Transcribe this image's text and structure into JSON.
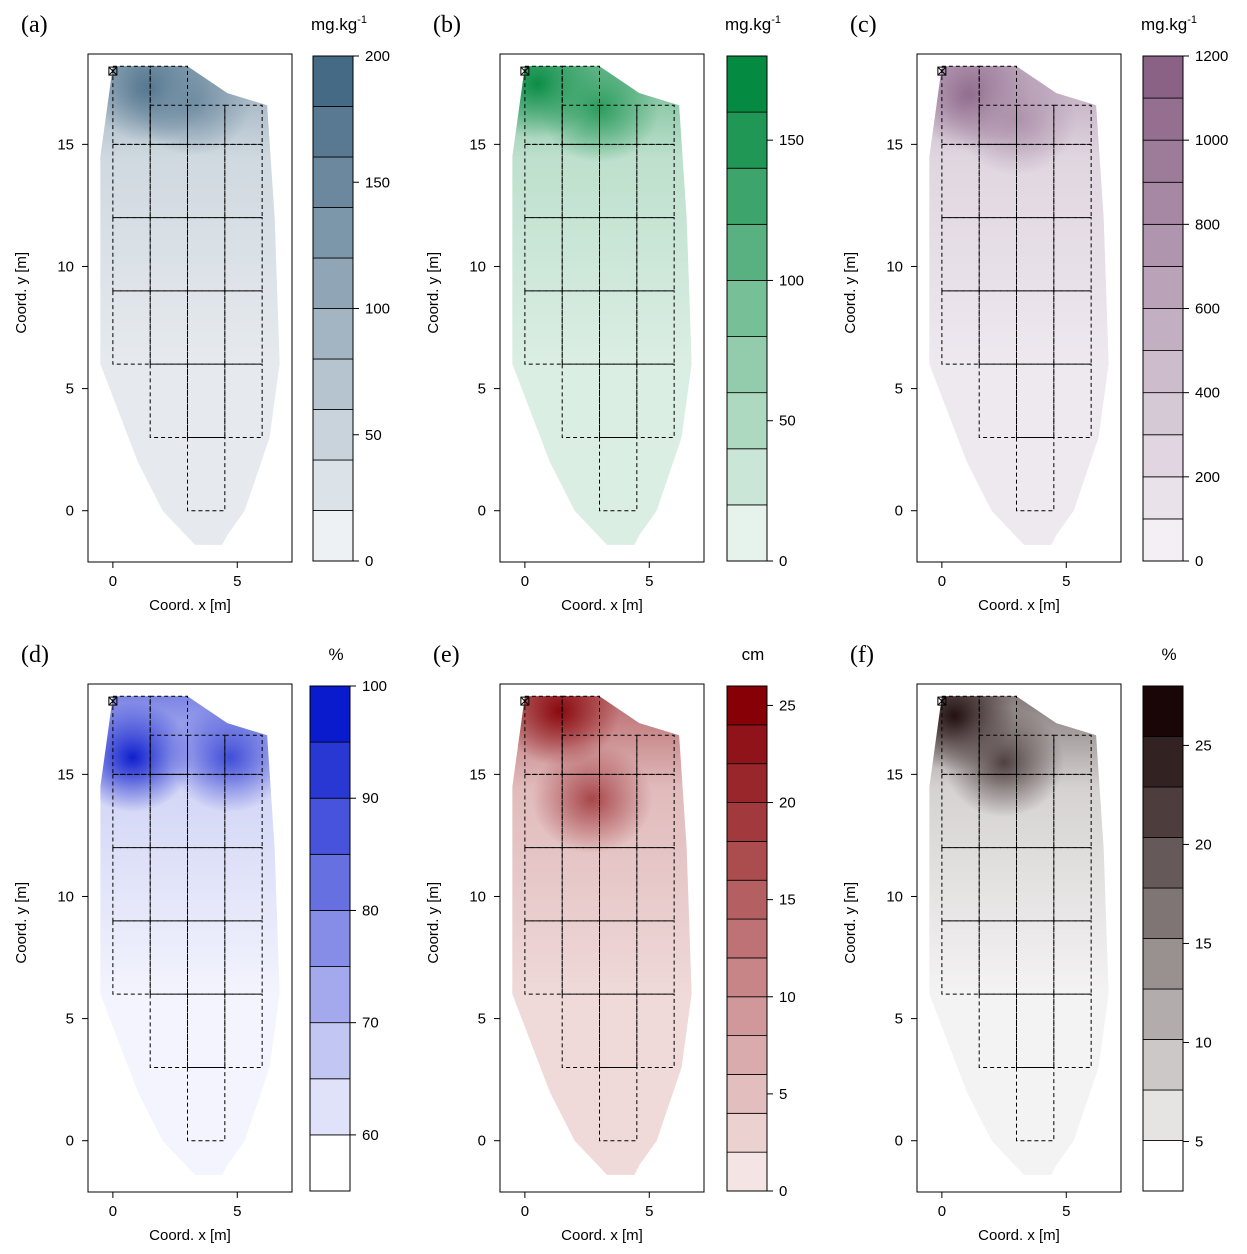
{
  "figure": {
    "grid": {
      "dims": "3 x 2 (panel)",
      "panels": [
        "(a)",
        "(b)",
        "(c)",
        "(d)",
        "(e)",
        "(f)"
      ]
    }
  },
  "chart_data": [
    {
      "type": "heatmap",
      "panel_label": "(a)",
      "unit_label": "mg.kg",
      "unit_superscript": "-1",
      "xlabel": "Coord. x [m]",
      "ylabel": "Coord. y [m]",
      "xlim": [
        -1,
        7.2
      ],
      "ylim": [
        -2.1,
        18.7
      ],
      "x_ticks": [
        "0",
        "5"
      ],
      "y_ticks": [
        "0",
        "5",
        "10",
        "15"
      ],
      "colorbar": {
        "min": 0,
        "max": 200,
        "levels": 10,
        "ticks": [
          "0",
          "50",
          "100",
          "150",
          "200"
        ],
        "tick_values": [
          0,
          50,
          100,
          150,
          200
        ],
        "color_low": "#eef1f4",
        "color_high": "#456a85"
      },
      "hotspots": [
        {
          "x": 1.5,
          "y": 17.3,
          "value": 190
        },
        {
          "x": 3.2,
          "y": 16.8,
          "value": 150
        }
      ]
    },
    {
      "type": "heatmap",
      "panel_label": "(b)",
      "unit_label": "mg.kg",
      "unit_superscript": "-1",
      "xlabel": "Coord. x [m]",
      "ylabel": "Coord. y [m]",
      "xlim": [
        -1,
        7.2
      ],
      "ylim": [
        -2.1,
        18.7
      ],
      "x_ticks": [
        "0",
        "5"
      ],
      "y_ticks": [
        "0",
        "5",
        "10",
        "15"
      ],
      "colorbar": {
        "min": 0,
        "max": 180,
        "levels": 9,
        "ticks": [
          "0",
          "50",
          "100",
          "150"
        ],
        "tick_values": [
          0,
          50,
          100,
          150
        ],
        "color_low": "#e6f3ec",
        "color_high": "#058a41"
      },
      "hotspots": [
        {
          "x": 0.5,
          "y": 17.5,
          "value": 175
        },
        {
          "x": 3.0,
          "y": 16.5,
          "value": 150
        }
      ]
    },
    {
      "type": "heatmap",
      "panel_label": "(c)",
      "unit_label": "mg.kg",
      "unit_superscript": "-1",
      "xlabel": "Coord. x [m]",
      "ylabel": "Coord. y [m]",
      "xlim": [
        -1,
        7.2
      ],
      "ylim": [
        -2.1,
        18.7
      ],
      "x_ticks": [
        "0",
        "5"
      ],
      "y_ticks": [
        "0",
        "5",
        "10",
        "15"
      ],
      "colorbar": {
        "min": 0,
        "max": 1200,
        "levels": 12,
        "ticks": [
          "0",
          "200",
          "400",
          "600",
          "800",
          "1000",
          "1200"
        ],
        "tick_values": [
          0,
          200,
          400,
          600,
          800,
          1000,
          1200
        ],
        "color_low": "#f3eff4",
        "color_high": "#8a6286"
      },
      "hotspots": [
        {
          "x": 1.2,
          "y": 17.0,
          "value": 1150
        },
        {
          "x": 3.0,
          "y": 16.0,
          "value": 800
        }
      ]
    },
    {
      "type": "heatmap",
      "panel_label": "(d)",
      "unit_label": "%",
      "unit_superscript": "",
      "xlabel": "Coord. x [m]",
      "ylabel": "Coord. y [m]",
      "xlim": [
        -1,
        7.2
      ],
      "ylim": [
        -2.1,
        18.7
      ],
      "x_ticks": [
        "0",
        "5"
      ],
      "y_ticks": [
        "0",
        "5",
        "10",
        "15"
      ],
      "colorbar": {
        "min": 55,
        "max": 100,
        "levels": 9,
        "ticks": [
          "60",
          "70",
          "80",
          "90",
          "100"
        ],
        "tick_values": [
          60,
          70,
          80,
          90,
          100
        ],
        "color_low": "#ffffff",
        "color_high": "#0a1acd"
      },
      "hotspots": [
        {
          "x": 0.8,
          "y": 15.7,
          "value": 99
        },
        {
          "x": 4.7,
          "y": 15.7,
          "value": 90
        }
      ]
    },
    {
      "type": "heatmap",
      "panel_label": "(e)",
      "unit_label": "cm",
      "unit_superscript": "",
      "xlabel": "Coord. x [m]",
      "ylabel": "Coord. y [m]",
      "xlim": [
        -1,
        7.2
      ],
      "ylim": [
        -2.1,
        18.7
      ],
      "x_ticks": [
        "0",
        "5"
      ],
      "y_ticks": [
        "0",
        "5",
        "10",
        "15"
      ],
      "colorbar": {
        "min": 0,
        "max": 26,
        "levels": 13,
        "ticks": [
          "0",
          "5",
          "10",
          "15",
          "20",
          "25"
        ],
        "tick_values": [
          0,
          5,
          10,
          15,
          20,
          25
        ],
        "color_low": "#f5e4e4",
        "color_high": "#860005"
      },
      "hotspots": [
        {
          "x": 1.4,
          "y": 17.6,
          "value": 25
        },
        {
          "x": 2.7,
          "y": 14.0,
          "value": 18
        }
      ]
    },
    {
      "type": "heatmap",
      "panel_label": "(f)",
      "unit_label": "%",
      "unit_superscript": "",
      "xlabel": "Coord. x [m]",
      "ylabel": "Coord. y [m]",
      "xlim": [
        -1,
        7.2
      ],
      "ylim": [
        -2.1,
        18.7
      ],
      "x_ticks": [
        "0",
        "5"
      ],
      "y_ticks": [
        "0",
        "5",
        "10",
        "15"
      ],
      "colorbar": {
        "min": 2.5,
        "max": 28,
        "levels": 10,
        "ticks": [
          "5",
          "10",
          "15",
          "20",
          "25"
        ],
        "tick_values": [
          5,
          10,
          15,
          20,
          25
        ],
        "color_low": "#ffffff",
        "color_high": "#1a0606"
      },
      "hotspots": [
        {
          "x": 0.5,
          "y": 17.4,
          "value": 27
        },
        {
          "x": 2.5,
          "y": 15.5,
          "value": 22
        }
      ]
    }
  ]
}
